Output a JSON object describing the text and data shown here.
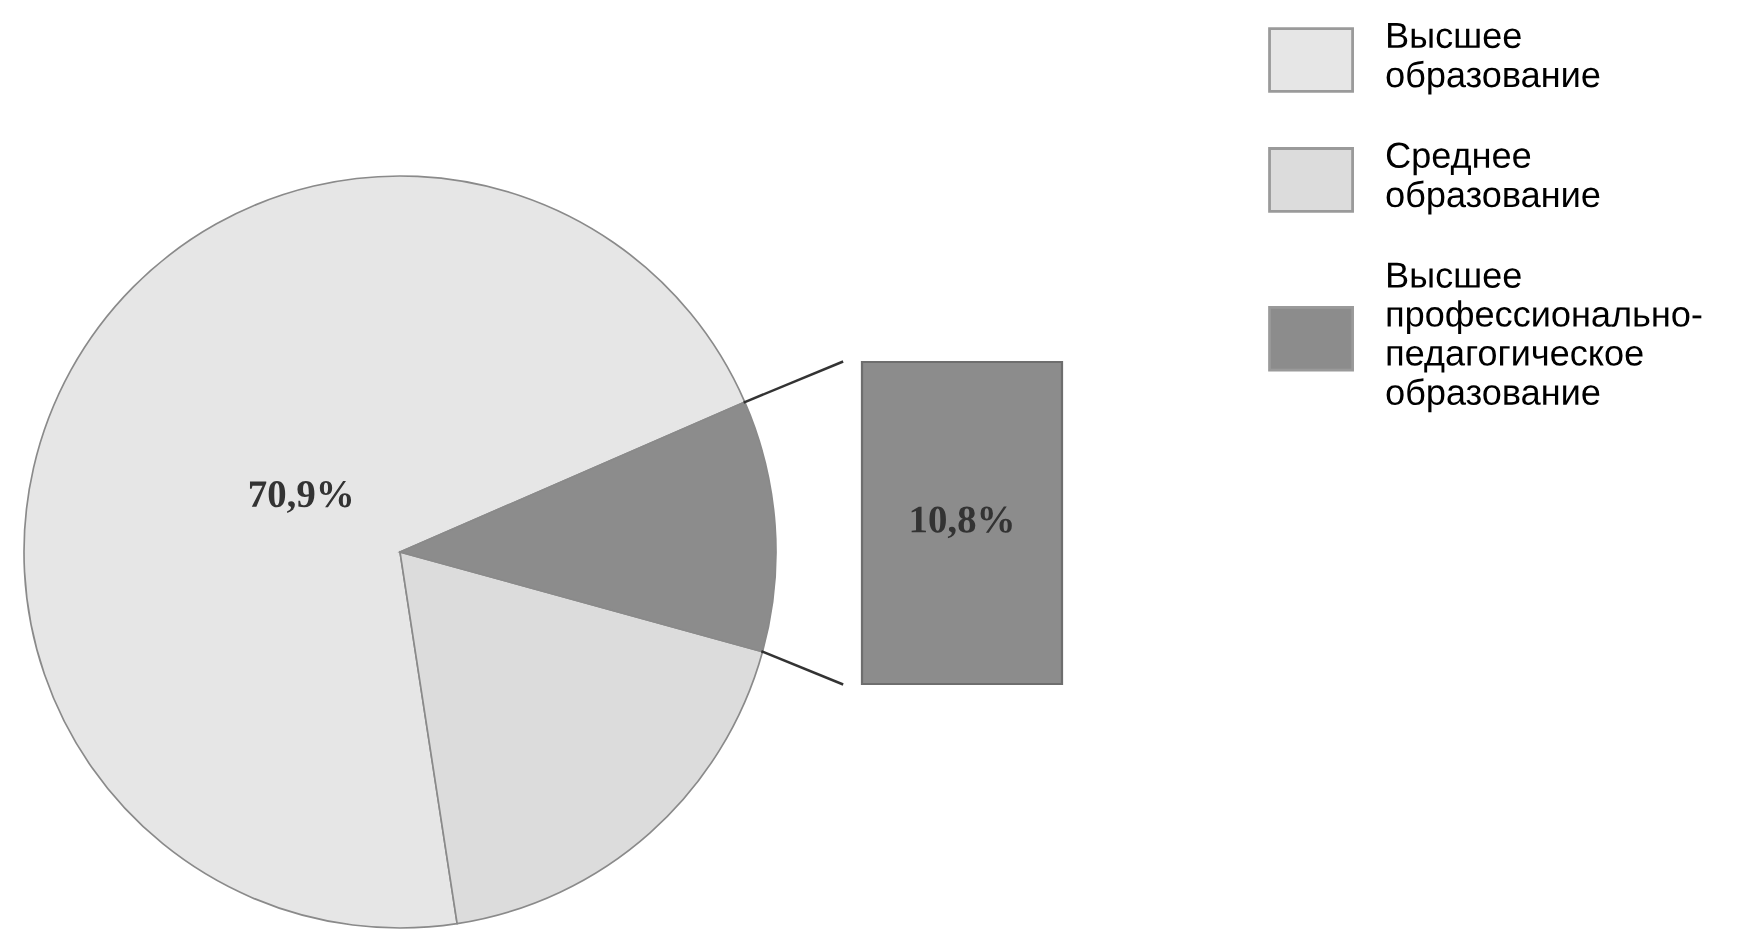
{
  "chart_data": {
    "type": "pie",
    "categories": [
      "Высшее\nобразование",
      "Среднее\nобразование",
      "Высшее\nпрофессионально-\nпедагогическое\nобразование"
    ],
    "values": [
      70.9,
      18.3,
      10.8
    ],
    "colors": [
      "#e6e6e6",
      "#dcdcdc",
      "#8c8c8c"
    ],
    "value_labels": [
      "70,9%",
      null,
      "10,8%"
    ],
    "legend": "top right"
  }
}
